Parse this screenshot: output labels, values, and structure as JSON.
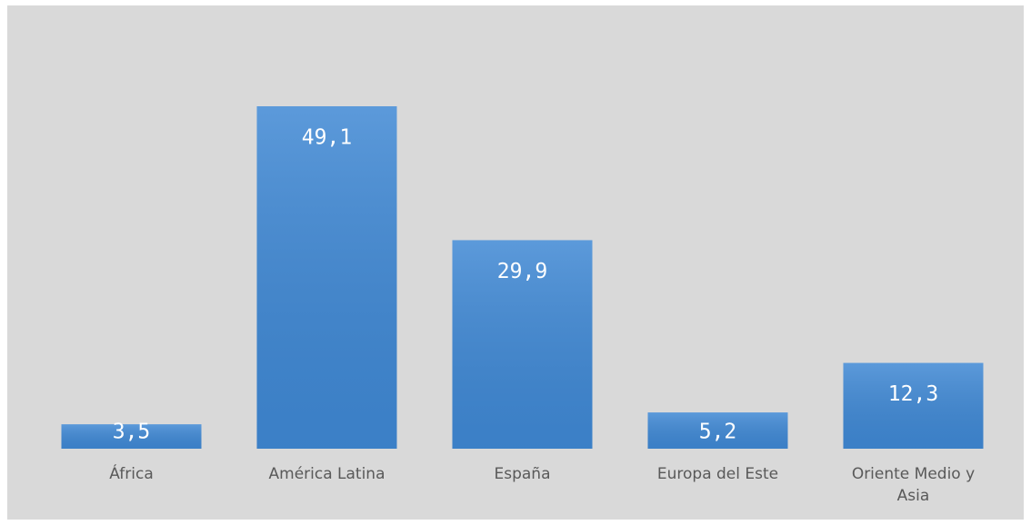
{
  "chart_data": {
    "type": "bar",
    "categories": [
      "África",
      "América Latina",
      "España",
      "Europa del Este",
      "Oriente Medio y Asia"
    ],
    "values": [
      3.5,
      49.1,
      29.9,
      5.2,
      12.3
    ],
    "value_labels": [
      "3,5",
      "49,1",
      "29,9",
      "5,2",
      "12,3"
    ],
    "color": "#3f88d4"
  }
}
